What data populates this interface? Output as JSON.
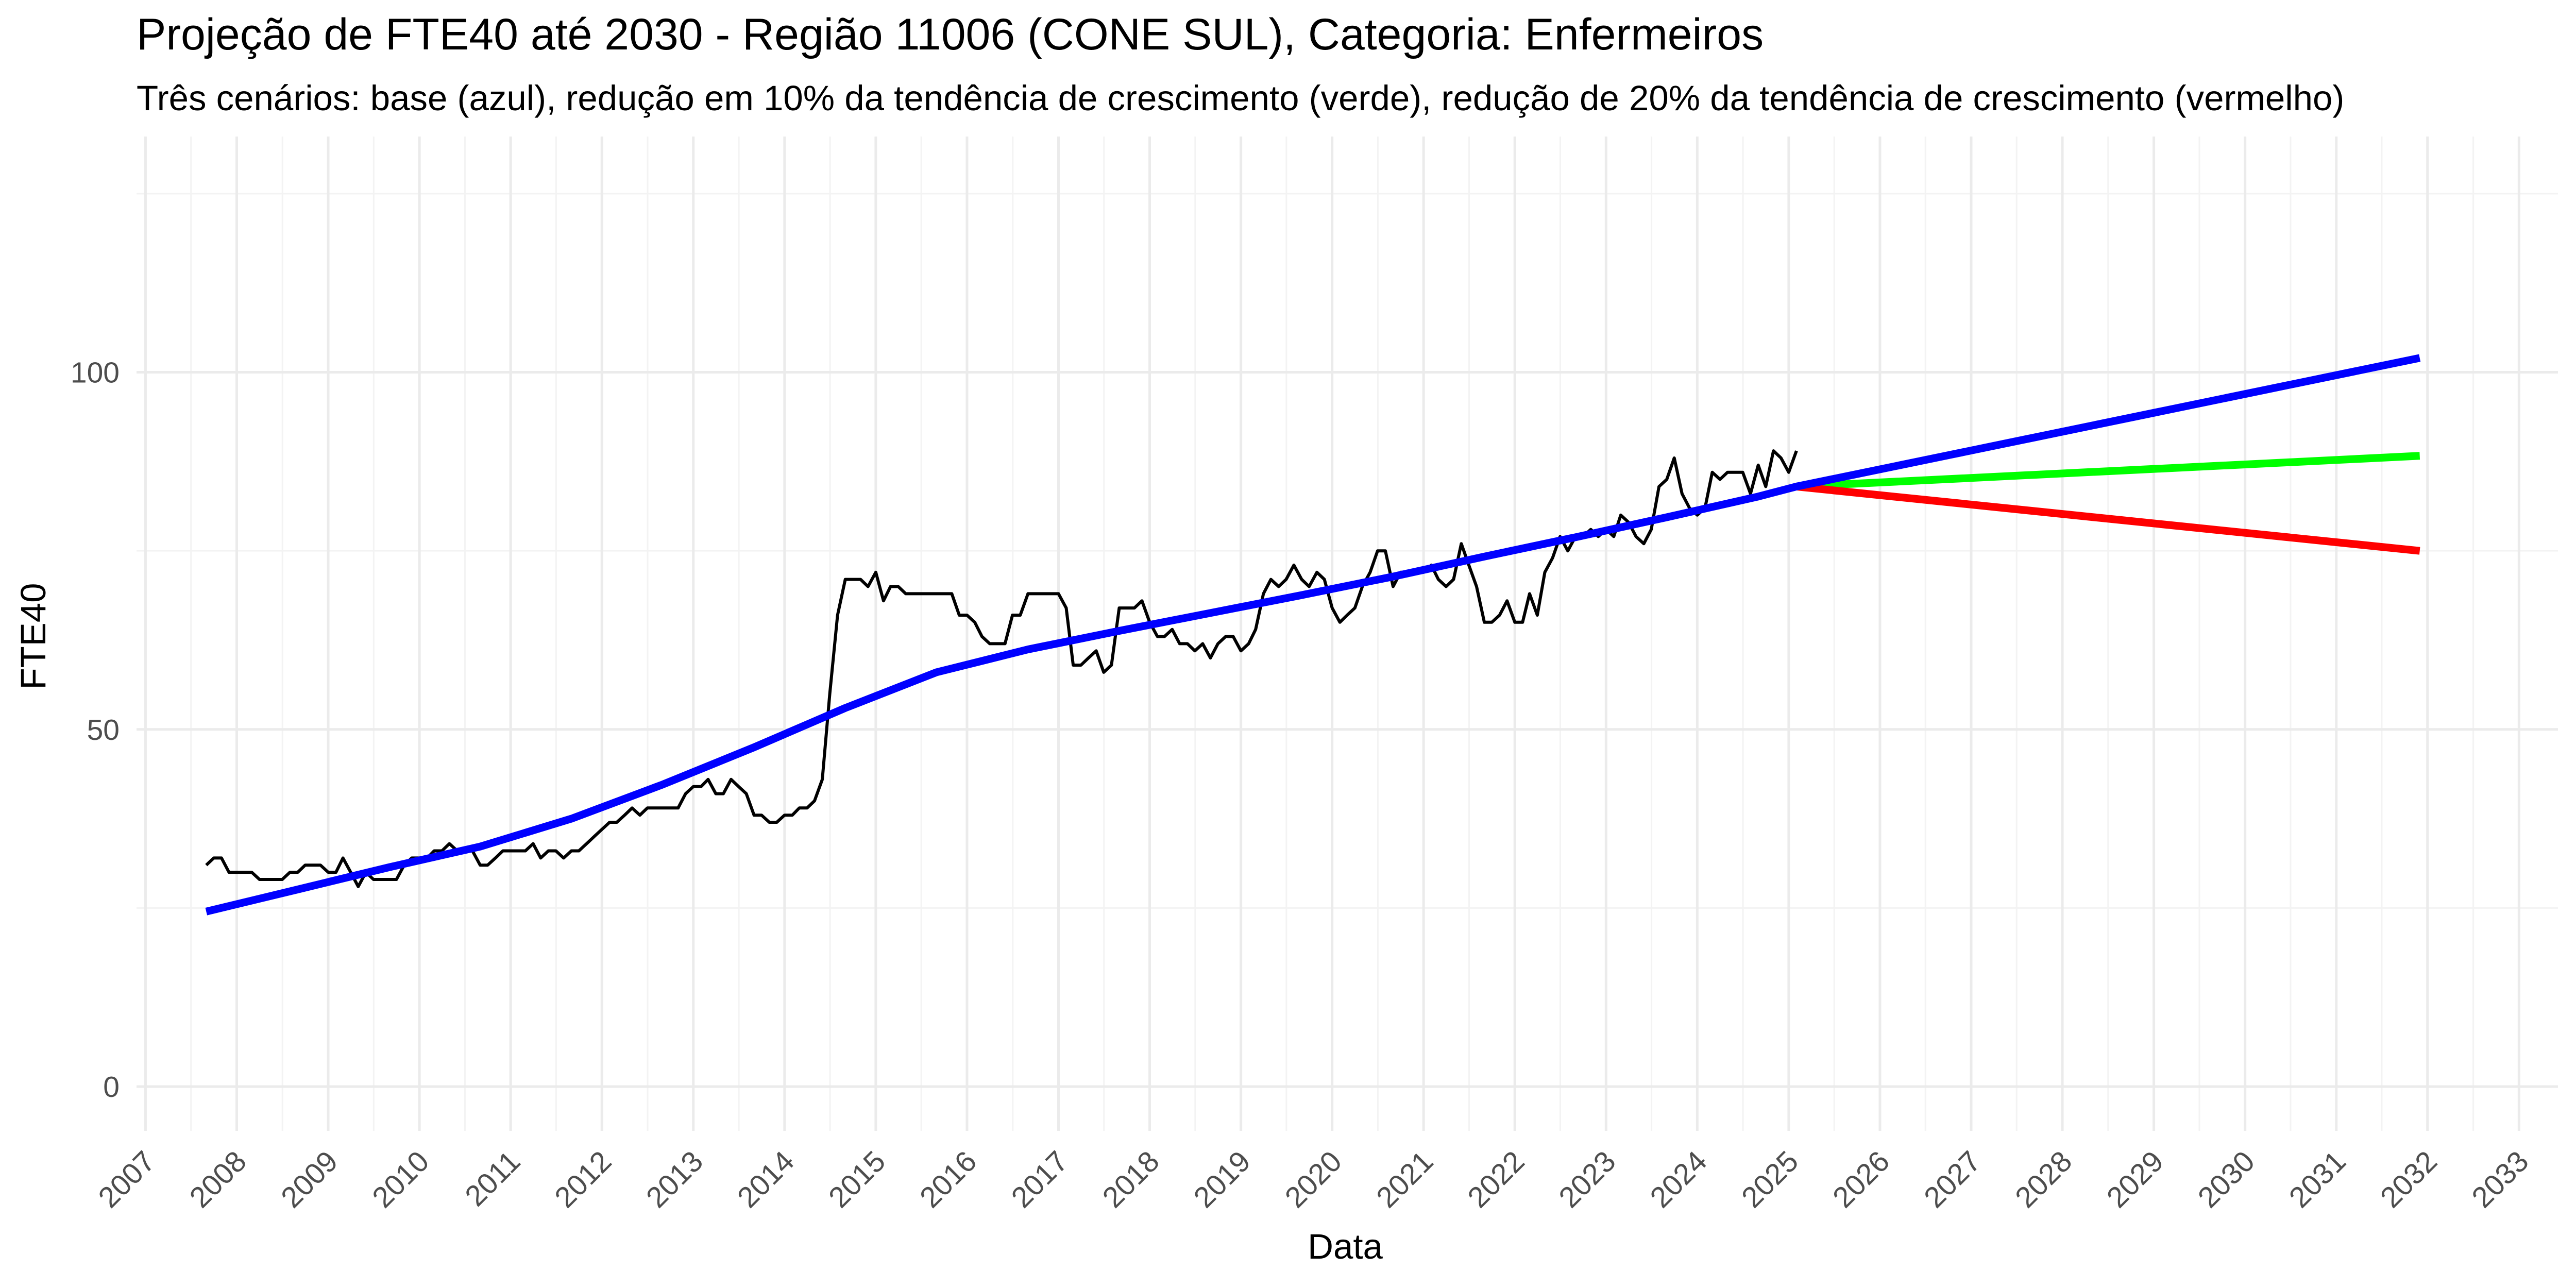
{
  "chart_data": {
    "type": "line",
    "title": "Projeção de FTE40 até 2030 - Região 11006 (CONE SUL), Categoria: Enfermeiros",
    "subtitle": "Três cenários: base (azul), redução em 10% da tendência de crescimento (verde), redução de 20% da tendência de crescimento (vermelho)",
    "xlabel": "Data",
    "ylabel": "FTE40",
    "x_axis_type": "date",
    "xlim": [
      "2006-11-26",
      "2033-06-06"
    ],
    "ylim": [
      -6.2,
      133
    ],
    "x_ticks": [
      "2007",
      "2008",
      "2009",
      "2010",
      "2011",
      "2012",
      "2013",
      "2014",
      "2015",
      "2016",
      "2017",
      "2018",
      "2019",
      "2020",
      "2021",
      "2022",
      "2023",
      "2024",
      "2025",
      "2026",
      "2027",
      "2028",
      "2029",
      "2030",
      "2031",
      "2032",
      "2033"
    ],
    "y_ticks": [
      0,
      50,
      100
    ],
    "grid": true,
    "legend": "none",
    "series": [
      {
        "color": "#000000",
        "points": [
          [
            "2007-09-01",
            31
          ],
          [
            "2007-10-01",
            32
          ],
          [
            "2007-11-01",
            32
          ],
          [
            "2007-12-01",
            30
          ],
          [
            "2008-01-01",
            30
          ],
          [
            "2008-02-01",
            30
          ],
          [
            "2008-03-01",
            30
          ],
          [
            "2008-04-01",
            29
          ],
          [
            "2008-05-01",
            29
          ],
          [
            "2008-06-01",
            29
          ],
          [
            "2008-07-01",
            29
          ],
          [
            "2008-08-01",
            30
          ],
          [
            "2008-09-01",
            30
          ],
          [
            "2008-10-01",
            31
          ],
          [
            "2008-11-01",
            31
          ],
          [
            "2008-12-01",
            31
          ],
          [
            "2009-01-01",
            30
          ],
          [
            "2009-02-01",
            30
          ],
          [
            "2009-03-01",
            32
          ],
          [
            "2009-04-01",
            30
          ],
          [
            "2009-05-01",
            28
          ],
          [
            "2009-06-01",
            30
          ],
          [
            "2009-07-01",
            29
          ],
          [
            "2009-08-01",
            29
          ],
          [
            "2009-09-01",
            29
          ],
          [
            "2009-10-01",
            29
          ],
          [
            "2009-11-01",
            31
          ],
          [
            "2009-12-01",
            32
          ],
          [
            "2010-01-01",
            32
          ],
          [
            "2010-02-01",
            32
          ],
          [
            "2010-03-01",
            33
          ],
          [
            "2010-04-01",
            33
          ],
          [
            "2010-05-01",
            34
          ],
          [
            "2010-06-01",
            33
          ],
          [
            "2010-07-01",
            33
          ],
          [
            "2010-08-01",
            33
          ],
          [
            "2010-09-01",
            31
          ],
          [
            "2010-10-01",
            31
          ],
          [
            "2010-11-01",
            32
          ],
          [
            "2010-12-01",
            33
          ],
          [
            "2011-01-01",
            33
          ],
          [
            "2011-02-01",
            33
          ],
          [
            "2011-03-01",
            33
          ],
          [
            "2011-04-01",
            34
          ],
          [
            "2011-05-01",
            32
          ],
          [
            "2011-06-01",
            33
          ],
          [
            "2011-07-01",
            33
          ],
          [
            "2011-08-01",
            32
          ],
          [
            "2011-09-01",
            33
          ],
          [
            "2011-10-01",
            33
          ],
          [
            "2011-11-01",
            34
          ],
          [
            "2011-12-01",
            35
          ],
          [
            "2012-01-01",
            36
          ],
          [
            "2012-02-01",
            37
          ],
          [
            "2012-03-01",
            37
          ],
          [
            "2012-04-01",
            38
          ],
          [
            "2012-05-01",
            39
          ],
          [
            "2012-06-01",
            38
          ],
          [
            "2012-07-01",
            39
          ],
          [
            "2012-08-01",
            39
          ],
          [
            "2012-09-01",
            39
          ],
          [
            "2012-10-01",
            39
          ],
          [
            "2012-11-01",
            39
          ],
          [
            "2012-12-01",
            41
          ],
          [
            "2013-01-01",
            42
          ],
          [
            "2013-02-01",
            42
          ],
          [
            "2013-03-01",
            43
          ],
          [
            "2013-04-01",
            41
          ],
          [
            "2013-05-01",
            41
          ],
          [
            "2013-06-01",
            43
          ],
          [
            "2013-07-01",
            42
          ],
          [
            "2013-08-01",
            41
          ],
          [
            "2013-09-01",
            38
          ],
          [
            "2013-10-01",
            38
          ],
          [
            "2013-11-01",
            37
          ],
          [
            "2013-12-01",
            37
          ],
          [
            "2014-01-01",
            38
          ],
          [
            "2014-02-01",
            38
          ],
          [
            "2014-03-01",
            39
          ],
          [
            "2014-04-01",
            39
          ],
          [
            "2014-05-01",
            40
          ],
          [
            "2014-06-01",
            43
          ],
          [
            "2014-07-01",
            55
          ],
          [
            "2014-08-01",
            66
          ],
          [
            "2014-09-01",
            71
          ],
          [
            "2014-10-01",
            71
          ],
          [
            "2014-11-01",
            71
          ],
          [
            "2014-12-01",
            70
          ],
          [
            "2015-01-01",
            72
          ],
          [
            "2015-02-01",
            68
          ],
          [
            "2015-03-01",
            70
          ],
          [
            "2015-04-01",
            70
          ],
          [
            "2015-05-01",
            69
          ],
          [
            "2015-06-01",
            69
          ],
          [
            "2015-07-01",
            69
          ],
          [
            "2015-08-01",
            69
          ],
          [
            "2015-09-01",
            69
          ],
          [
            "2015-10-01",
            69
          ],
          [
            "2015-11-01",
            69
          ],
          [
            "2015-12-01",
            66
          ],
          [
            "2016-01-01",
            66
          ],
          [
            "2016-02-01",
            65
          ],
          [
            "2016-03-01",
            63
          ],
          [
            "2016-04-01",
            62
          ],
          [
            "2016-05-01",
            62
          ],
          [
            "2016-06-01",
            62
          ],
          [
            "2016-07-01",
            66
          ],
          [
            "2016-08-01",
            66
          ],
          [
            "2016-09-01",
            69
          ],
          [
            "2016-10-01",
            69
          ],
          [
            "2016-11-01",
            69
          ],
          [
            "2016-12-01",
            69
          ],
          [
            "2017-01-01",
            69
          ],
          [
            "2017-02-01",
            67
          ],
          [
            "2017-03-01",
            59
          ],
          [
            "2017-04-01",
            59
          ],
          [
            "2017-05-01",
            60
          ],
          [
            "2017-06-01",
            61
          ],
          [
            "2017-07-01",
            58
          ],
          [
            "2017-08-01",
            59
          ],
          [
            "2017-09-01",
            67
          ],
          [
            "2017-10-01",
            67
          ],
          [
            "2017-11-01",
            67
          ],
          [
            "2017-12-01",
            68
          ],
          [
            "2018-01-01",
            65
          ],
          [
            "2018-02-01",
            63
          ],
          [
            "2018-03-01",
            63
          ],
          [
            "2018-04-01",
            64
          ],
          [
            "2018-05-01",
            62
          ],
          [
            "2018-06-01",
            62
          ],
          [
            "2018-07-01",
            61
          ],
          [
            "2018-08-01",
            62
          ],
          [
            "2018-09-01",
            60
          ],
          [
            "2018-10-01",
            62
          ],
          [
            "2018-11-01",
            63
          ],
          [
            "2018-12-01",
            63
          ],
          [
            "2019-01-01",
            61
          ],
          [
            "2019-02-01",
            62
          ],
          [
            "2019-03-01",
            64
          ],
          [
            "2019-04-01",
            69
          ],
          [
            "2019-05-01",
            71
          ],
          [
            "2019-06-01",
            70
          ],
          [
            "2019-07-01",
            71
          ],
          [
            "2019-08-01",
            73
          ],
          [
            "2019-09-01",
            71
          ],
          [
            "2019-10-01",
            70
          ],
          [
            "2019-11-01",
            72
          ],
          [
            "2019-12-01",
            71
          ],
          [
            "2020-01-01",
            67
          ],
          [
            "2020-02-01",
            65
          ],
          [
            "2020-03-01",
            66
          ],
          [
            "2020-04-01",
            67
          ],
          [
            "2020-05-01",
            70
          ],
          [
            "2020-06-01",
            72
          ],
          [
            "2020-07-01",
            75
          ],
          [
            "2020-08-01",
            75
          ],
          [
            "2020-09-01",
            70
          ],
          [
            "2020-10-01",
            72
          ],
          [
            "2020-11-01",
            72
          ],
          [
            "2020-12-01",
            72
          ],
          [
            "2021-01-01",
            72
          ],
          [
            "2021-02-01",
            73
          ],
          [
            "2021-03-01",
            71
          ],
          [
            "2021-04-01",
            70
          ],
          [
            "2021-05-01",
            71
          ],
          [
            "2021-06-01",
            76
          ],
          [
            "2021-07-01",
            73
          ],
          [
            "2021-08-01",
            70
          ],
          [
            "2021-09-01",
            65
          ],
          [
            "2021-10-01",
            65
          ],
          [
            "2021-11-01",
            66
          ],
          [
            "2021-12-01",
            68
          ],
          [
            "2022-01-01",
            65
          ],
          [
            "2022-02-01",
            65
          ],
          [
            "2022-03-01",
            69
          ],
          [
            "2022-04-01",
            66
          ],
          [
            "2022-05-01",
            72
          ],
          [
            "2022-06-01",
            74
          ],
          [
            "2022-07-01",
            77
          ],
          [
            "2022-08-01",
            75
          ],
          [
            "2022-09-01",
            77
          ],
          [
            "2022-10-01",
            77
          ],
          [
            "2022-11-01",
            78
          ],
          [
            "2022-12-01",
            77
          ],
          [
            "2023-01-01",
            78
          ],
          [
            "2023-02-01",
            77
          ],
          [
            "2023-03-01",
            80
          ],
          [
            "2023-04-01",
            79
          ],
          [
            "2023-05-01",
            77
          ],
          [
            "2023-06-01",
            76
          ],
          [
            "2023-07-01",
            78
          ],
          [
            "2023-08-01",
            84
          ],
          [
            "2023-09-01",
            85
          ],
          [
            "2023-10-01",
            88
          ],
          [
            "2023-11-01",
            83
          ],
          [
            "2023-12-01",
            81
          ],
          [
            "2024-01-01",
            80
          ],
          [
            "2024-02-01",
            81
          ],
          [
            "2024-03-01",
            86
          ],
          [
            "2024-04-01",
            85
          ],
          [
            "2024-05-01",
            86
          ],
          [
            "2024-06-01",
            86
          ],
          [
            "2024-07-01",
            86
          ],
          [
            "2024-08-01",
            83
          ],
          [
            "2024-09-01",
            87
          ],
          [
            "2024-10-01",
            84
          ],
          [
            "2024-11-01",
            89
          ],
          [
            "2024-12-01",
            88
          ],
          [
            "2025-01-01",
            86
          ],
          [
            "2025-02-01",
            89
          ]
        ]
      },
      {
        "color": "#0000ff",
        "points": [
          [
            "2007-09-01",
            24.5
          ],
          [
            "2008-09-01",
            27.6
          ],
          [
            "2009-09-01",
            30.7
          ],
          [
            "2010-09-01",
            33.6
          ],
          [
            "2011-09-01",
            37.5
          ],
          [
            "2012-09-01",
            42.3
          ],
          [
            "2013-09-01",
            47.5
          ],
          [
            "2014-09-01",
            53.0
          ],
          [
            "2015-09-01",
            58.0
          ],
          [
            "2016-09-01",
            61.2
          ],
          [
            "2017-09-01",
            63.8
          ],
          [
            "2018-09-01",
            66.3
          ],
          [
            "2019-09-01",
            68.8
          ],
          [
            "2020-09-01",
            71.4
          ],
          [
            "2021-09-01",
            74.2
          ],
          [
            "2022-09-01",
            76.9
          ],
          [
            "2023-09-01",
            79.7
          ],
          [
            "2024-09-01",
            82.6
          ],
          [
            "2025-02-01",
            84.0
          ],
          [
            "2031-12-01",
            102.0
          ]
        ]
      },
      {
        "color": "#00ff00",
        "points": [
          [
            "2025-02-01",
            84.0
          ],
          [
            "2031-12-01",
            88.3
          ]
        ]
      },
      {
        "color": "#ff0000",
        "points": [
          [
            "2025-02-01",
            84.0
          ],
          [
            "2031-12-01",
            75.0
          ]
        ]
      }
    ]
  }
}
